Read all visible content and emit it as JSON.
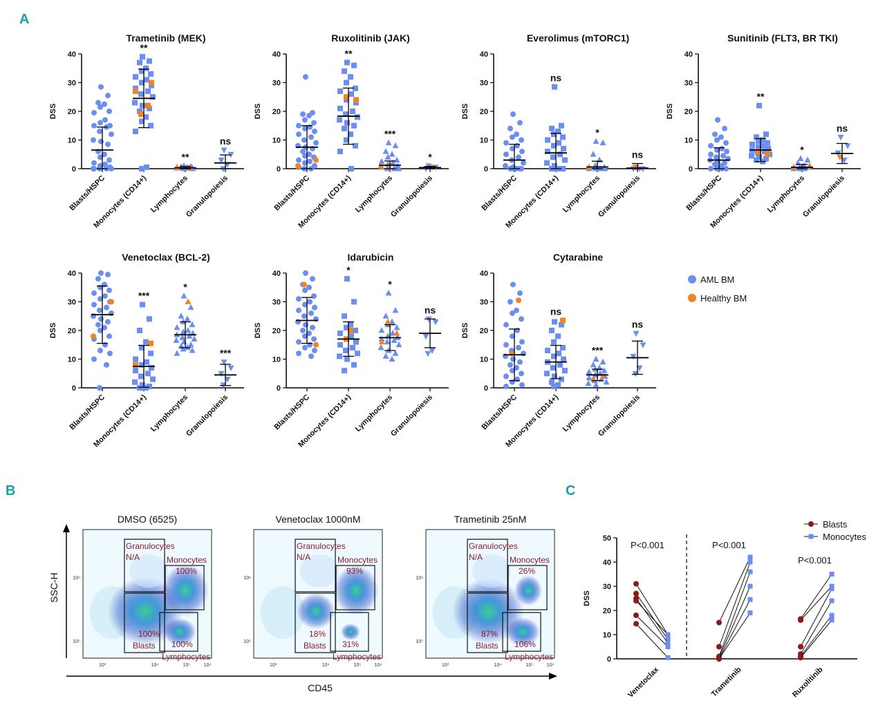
{
  "panel_labels": {
    "a": "A",
    "b": "B",
    "c": "C"
  },
  "colors": {
    "aml": "#6b8ff0",
    "healthy": "#f58220",
    "blasts": "#8b1a1a",
    "monocytes": "#6b8ff0",
    "gate": "#8b1a2b",
    "panel_label": "#1aa0a6"
  },
  "legend_a": {
    "aml": "AML BM",
    "healthy": "Healthy BM"
  },
  "chart_data": [
    {
      "type": "scatter",
      "title": "Trametinib (MEK)",
      "ylabel": "DSS",
      "ylim": [
        0,
        40
      ],
      "yticks": [
        "0",
        "10",
        "20",
        "30",
        "40"
      ],
      "categories": [
        "Blasts/HSPC",
        "Monocytes (CD14+)",
        "Lymphocytes",
        "Granulopoiesis"
      ],
      "significance": [
        "",
        "**",
        "**",
        "ns"
      ],
      "groups": [
        {
          "mean": 6.5,
          "sd": 8,
          "aml": [
            28.5,
            25.5,
            23,
            22.5,
            21.5,
            20,
            19.5,
            17,
            16,
            15,
            15,
            14.5,
            13,
            12,
            10,
            9.5,
            8.5,
            6,
            5,
            4,
            3,
            2,
            1.5,
            1,
            0.5,
            0,
            0,
            0,
            0,
            0
          ],
          "healthy": []
        },
        {
          "mean": 24.5,
          "sd": 10.2,
          "aml": [
            39,
            37.5,
            37,
            35,
            34,
            33,
            32,
            31,
            30,
            29,
            28,
            27,
            26,
            25,
            23,
            22,
            21,
            20,
            18,
            16.5,
            15,
            13,
            0.5,
            0
          ],
          "healthy": [
            30,
            27,
            22,
            19
          ]
        },
        {
          "mean": 0.3,
          "sd": 0.5,
          "aml": [
            1,
            0.8,
            0.6,
            0.5,
            0.4,
            0.3,
            0.2,
            0.1,
            0,
            0
          ],
          "healthy": [
            0.5,
            0.2
          ]
        },
        {
          "mean": 2,
          "sd": 2.8,
          "aml": [
            6.5,
            5,
            3,
            1.5,
            0
          ],
          "healthy": []
        }
      ]
    },
    {
      "type": "scatter",
      "title": "Ruxolitinib (JAK)",
      "ylabel": "DSS",
      "ylim": [
        0,
        40
      ],
      "yticks": [
        "0",
        "10",
        "20",
        "30",
        "40"
      ],
      "categories": [
        "Blasts/HSPC",
        "Monocytes (CD14+)",
        "Lymphocytes",
        "Granulopoiesis"
      ],
      "significance": [
        "",
        "**",
        "***",
        "*"
      ],
      "groups": [
        {
          "mean": 7.5,
          "sd": 7.5,
          "aml": [
            32,
            19.5,
            19,
            18.5,
            17,
            16,
            15,
            14.5,
            14,
            13,
            12,
            11,
            10,
            9,
            8,
            7.5,
            7,
            6,
            5,
            4.5,
            4,
            3,
            2.5,
            2,
            1,
            0.5,
            0,
            0
          ],
          "healthy": [
            3,
            1
          ]
        },
        {
          "mean": 18.3,
          "sd": 9.8,
          "aml": [
            37,
            36,
            34,
            32,
            30,
            28,
            27,
            26,
            24,
            23,
            21,
            20,
            19,
            18,
            17,
            16,
            15,
            14,
            12,
            10,
            8,
            6,
            0
          ],
          "healthy": [
            25,
            24
          ]
        },
        {
          "mean": 1.2,
          "sd": 1.5,
          "aml": [
            9,
            8,
            6,
            5,
            4,
            3,
            2.5,
            2,
            1.5,
            1,
            0.5,
            0,
            0,
            0
          ],
          "healthy": [
            1,
            0.5
          ]
        },
        {
          "mean": 0.4,
          "sd": 0.4,
          "aml": [
            1,
            0.5,
            0
          ],
          "healthy": [
            0.5
          ]
        }
      ]
    },
    {
      "type": "scatter",
      "title": "Everolimus (mTORC1)",
      "ylabel": "DSS",
      "ylim": [
        0,
        40
      ],
      "yticks": [
        "0",
        "10",
        "20",
        "30",
        "40"
      ],
      "categories": [
        "Blasts/HSPC",
        "Monocytes (CD14+)",
        "Lymphocytes",
        "Granulopoiesis"
      ],
      "significance": [
        "",
        "ns",
        "*",
        "ns"
      ],
      "groups": [
        {
          "mean": 3,
          "sd": 5.5,
          "aml": [
            19,
            16,
            14,
            12,
            11,
            10,
            9,
            8,
            7,
            6,
            5,
            4,
            3,
            2,
            1,
            0.5,
            0,
            0,
            0,
            0,
            0
          ],
          "healthy": []
        },
        {
          "mean": 5.5,
          "sd": 6.8,
          "aml": [
            28.5,
            15,
            14,
            13,
            12,
            11,
            10,
            9,
            8,
            7,
            6,
            5,
            4,
            3,
            2,
            1,
            0,
            0,
            0,
            0,
            0
          ],
          "healthy": []
        },
        {
          "mean": 0.6,
          "sd": 2,
          "aml": [
            9.5,
            9,
            5,
            3,
            1,
            0.5,
            0,
            0,
            0,
            0
          ],
          "healthy": [
            0.5
          ]
        },
        {
          "mean": 0.2,
          "sd": 1.6,
          "aml": [
            0.5,
            0,
            0,
            0
          ],
          "healthy": [
            0.5
          ]
        }
      ]
    },
    {
      "type": "scatter",
      "title": "Sunitinib (FLT3, BR TKI)",
      "ylabel": "DSS",
      "ylim": [
        0,
        40
      ],
      "yticks": [
        "0",
        "10",
        "20",
        "30",
        "40"
      ],
      "categories": [
        "Blasts/HSPC",
        "Monocytes (CD14+)",
        "Lymphocytes",
        "Granulopoiesis"
      ],
      "significance": [
        "",
        "**",
        "*",
        "ns"
      ],
      "groups": [
        {
          "mean": 3,
          "sd": 4.3,
          "aml": [
            17,
            14,
            12,
            11,
            10,
            9,
            8,
            7,
            6.5,
            6,
            5,
            4.5,
            4,
            3.5,
            3,
            2.5,
            2,
            1.5,
            1,
            0.5,
            0,
            0,
            0,
            0
          ],
          "healthy": []
        },
        {
          "mean": 6.5,
          "sd": 4,
          "aml": [
            22,
            12,
            11,
            10,
            9.5,
            9,
            8.5,
            8,
            7.5,
            7,
            6.5,
            6,
            5.5,
            5,
            4.5,
            4,
            3.5,
            3,
            2.5
          ],
          "healthy": [
            6,
            5
          ]
        },
        {
          "mean": 0.5,
          "sd": 1,
          "aml": [
            3.5,
            3,
            2,
            1,
            0.5,
            0.5,
            0,
            0,
            0
          ],
          "healthy": [
            1,
            0.5
          ]
        },
        {
          "mean": 5.3,
          "sd": 3.5,
          "aml": [
            11,
            8,
            5.5,
            3
          ],
          "healthy": [
            4
          ]
        }
      ]
    },
    {
      "type": "scatter",
      "title": "Venetoclax (BCL-2)",
      "ylabel": "DSS",
      "ylim": [
        0,
        40
      ],
      "yticks": [
        "0",
        "10",
        "20",
        "30",
        "40"
      ],
      "categories": [
        "Blasts/HSPC",
        "Monocytes (CD14+)",
        "Lymphocytes",
        "Granulopoiesis"
      ],
      "significance": [
        "",
        "***",
        "*",
        "***"
      ],
      "groups": [
        {
          "mean": 25.5,
          "sd": 10,
          "aml": [
            40,
            39.5,
            38,
            36,
            35,
            34,
            33,
            32,
            31,
            30,
            29,
            28,
            27,
            26,
            25,
            24,
            23,
            22,
            21,
            20,
            18,
            17,
            15,
            13,
            12,
            10,
            8,
            0
          ],
          "healthy": [
            30,
            18
          ]
        },
        {
          "mean": 7.5,
          "sd": 7.3,
          "aml": [
            29,
            24,
            20,
            16,
            14,
            12,
            10,
            9,
            8,
            7,
            6,
            5,
            4,
            3,
            2,
            1,
            0.5,
            0,
            0,
            0
          ],
          "healthy": [
            15.5,
            8
          ]
        },
        {
          "mean": 18.5,
          "sd": 4.5,
          "aml": [
            32,
            28,
            25,
            24,
            23,
            22,
            21,
            20,
            19.5,
            19,
            18.5,
            18,
            17.5,
            17,
            16.5,
            16,
            15,
            14.5,
            14,
            13.5,
            13,
            12
          ],
          "healthy": [
            30
          ]
        },
        {
          "mean": 4.5,
          "sd": 3.7,
          "aml": [
            9,
            7,
            5,
            3,
            1
          ],
          "healthy": []
        }
      ]
    },
    {
      "type": "scatter",
      "title": "Idarubicin",
      "ylabel": "DSS",
      "ylim": [
        0,
        40
      ],
      "yticks": [
        "0",
        "10",
        "20",
        "30",
        "40"
      ],
      "categories": [
        "Blasts/HSPC",
        "Monocytes (CD14+)",
        "Lymphocytes",
        "Granulopoiesis"
      ],
      "significance": [
        "",
        "*",
        "*",
        "ns"
      ],
      "groups": [
        {
          "mean": 23.5,
          "sd": 8,
          "aml": [
            40,
            38,
            36,
            35,
            34,
            32,
            31,
            30,
            29,
            28,
            27,
            26,
            25,
            24,
            23,
            22,
            21,
            20,
            19,
            18,
            17,
            16,
            15,
            14,
            13,
            12,
            11
          ],
          "healthy": [
            36,
            15
          ]
        },
        {
          "mean": 17,
          "sd": 6,
          "aml": [
            38,
            30,
            25,
            22,
            21,
            20,
            19,
            18,
            17,
            16,
            15,
            14,
            13,
            12,
            11,
            10,
            8,
            6
          ],
          "healthy": [
            20,
            17
          ]
        },
        {
          "mean": 17.5,
          "sd": 4.5,
          "aml": [
            33,
            27,
            25,
            23,
            22,
            21,
            20,
            19,
            18,
            17.5,
            17,
            16.5,
            16,
            15,
            14,
            13,
            12,
            11,
            10
          ],
          "healthy": [
            23,
            19,
            16
          ]
        },
        {
          "mean": 19,
          "sd": 5,
          "aml": [
            24,
            23,
            18,
            13,
            12
          ],
          "healthy": []
        }
      ]
    },
    {
      "type": "scatter",
      "title": "Cytarabine",
      "ylabel": "DSS",
      "ylim": [
        0,
        40
      ],
      "yticks": [
        "0",
        "10",
        "20",
        "30",
        "40"
      ],
      "categories": [
        "Blasts/HSPC",
        "Monocytes (CD14+)",
        "Lymphocytes",
        "Granulopoiesis"
      ],
      "significance": [
        "",
        "ns",
        "***",
        "ns"
      ],
      "groups": [
        {
          "mean": 11.5,
          "sd": 9,
          "aml": [
            36,
            33,
            30,
            27,
            26,
            24,
            22,
            20,
            18,
            16,
            15,
            14,
            13,
            12,
            11,
            10,
            9,
            8,
            7,
            6,
            5,
            4,
            3,
            2,
            1,
            0.5
          ],
          "healthy": [
            30.5,
            12
          ]
        },
        {
          "mean": 9,
          "sd": 5.8,
          "aml": [
            23,
            22,
            20,
            18,
            16,
            14,
            13,
            12,
            11,
            10,
            9,
            8,
            7,
            6,
            5,
            4,
            3,
            2,
            1,
            0.5
          ],
          "healthy": [
            23.5
          ]
        },
        {
          "mean": 4.5,
          "sd": 2,
          "aml": [
            10,
            9,
            8,
            7,
            6.5,
            6,
            5.5,
            5,
            4.5,
            4,
            3.5,
            3,
            2.5,
            2,
            1.5,
            1
          ],
          "healthy": [
            4,
            3
          ]
        },
        {
          "mean": 10.5,
          "sd": 5.8,
          "aml": [
            19,
            15,
            11,
            7,
            5
          ],
          "healthy": []
        }
      ]
    },
    {
      "type": "line",
      "panel": "C",
      "ylabel": "DSS",
      "ylim": [
        0,
        50
      ],
      "yticks": [
        "0",
        "10",
        "20",
        "30",
        "40",
        "50"
      ],
      "categories": [
        "Venetoclax",
        "Trametinib",
        "Ruxolitinib"
      ],
      "p_values": [
        "P<0.001",
        "P<0.001",
        "P<0.001"
      ],
      "legend": {
        "blasts": "Blasts",
        "monocytes": "Monocytes"
      },
      "pairs": [
        [
          [
            31,
            10
          ],
          [
            27,
            8
          ],
          [
            25,
            6.5
          ],
          [
            24,
            10
          ],
          [
            18,
            5
          ],
          [
            14.5,
            0.5
          ]
        ],
        [
          [
            15,
            42
          ],
          [
            5,
            40
          ],
          [
            1,
            36
          ],
          [
            0.5,
            30
          ],
          [
            0,
            24.5
          ],
          [
            0,
            19
          ]
        ],
        [
          [
            16.5,
            35
          ],
          [
            16,
            30
          ],
          [
            5,
            29
          ],
          [
            2,
            24
          ],
          [
            1,
            18
          ],
          [
            0.5,
            16
          ]
        ]
      ]
    }
  ],
  "panel_b": {
    "x_axis_label": "CD45",
    "y_axis_label": "SSC-H",
    "x_ticks": [
      "10³",
      "10⁴",
      "10⁵",
      "10⁶"
    ],
    "y_ticks": [
      "10⁶",
      "10⁵"
    ],
    "plots": [
      {
        "title": "DMSO (6525)",
        "gran_label": "Granulocytes",
        "gran_value": "N/A",
        "mono_label": "Monocytes",
        "mono_value": "100%",
        "blast_value": "100%",
        "blast_label": "Blasts",
        "lymph_value": "100%",
        "lymph_label": "Lymphocytes"
      },
      {
        "title": "Venetoclax 1000nM",
        "gran_label": "Granulocytes",
        "gran_value": "N/A",
        "mono_label": "Monocytes",
        "mono_value": "93%",
        "blast_value": "18%",
        "blast_label": "Blasts",
        "lymph_value": "31%",
        "lymph_label": "Lymphocytes"
      },
      {
        "title": "Trametinib 25nM",
        "gran_label": "Granulocytes",
        "gran_value": "N/A",
        "mono_label": "Monocytes",
        "mono_value": "26%",
        "blast_value": "87%",
        "blast_label": "Blasts",
        "lymph_value": "106%",
        "lymph_label": "Lymphocytes"
      }
    ]
  }
}
